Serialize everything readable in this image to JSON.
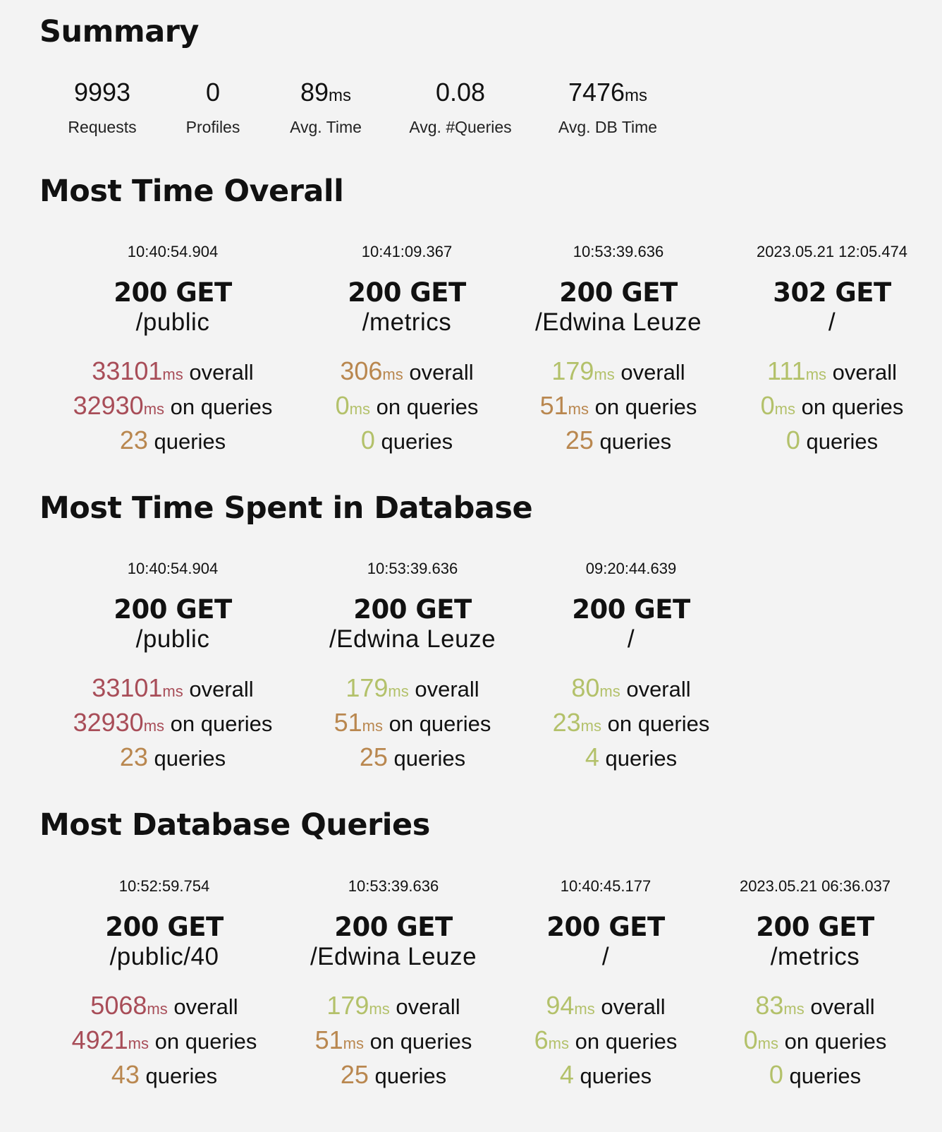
{
  "summary": {
    "title": "Summary",
    "stats": [
      {
        "value": "9993",
        "unit": "",
        "label": "Requests"
      },
      {
        "value": "0",
        "unit": "",
        "label": "Profiles"
      },
      {
        "value": "89",
        "unit": "ms",
        "label": "Avg. Time"
      },
      {
        "value": "0.08",
        "unit": "",
        "label": "Avg. #Queries"
      },
      {
        "value": "7476",
        "unit": "ms",
        "label": "Avg. DB Time"
      }
    ]
  },
  "labels": {
    "ms": "ms",
    "overall": "overall",
    "on_queries": "on queries",
    "queries": "queries"
  },
  "colors": {
    "red": "#a84d58",
    "orange": "#b9874f",
    "green": "#b3c16a"
  },
  "sections": [
    {
      "title": "Most Time Overall",
      "cards": [
        {
          "time": "10:40:54.904",
          "status": "200 GET",
          "path": "/public",
          "overall": "33101",
          "overall_color": "red",
          "on_queries": "32930",
          "on_queries_color": "red",
          "queries": "23",
          "queries_color": "orange"
        },
        {
          "time": "10:41:09.367",
          "status": "200 GET",
          "path": "/metrics",
          "overall": "306",
          "overall_color": "orange",
          "on_queries": "0",
          "on_queries_color": "green",
          "queries": "0",
          "queries_color": "green"
        },
        {
          "time": "10:53:39.636",
          "status": "200 GET",
          "path": "/Edwina Leuze",
          "overall": "179",
          "overall_color": "green",
          "on_queries": "51",
          "on_queries_color": "orange",
          "queries": "25",
          "queries_color": "orange"
        },
        {
          "time": "2023.05.21 12:05.474",
          "status": "302 GET",
          "path": "/",
          "overall": "111",
          "overall_color": "green",
          "on_queries": "0",
          "on_queries_color": "green",
          "queries": "0",
          "queries_color": "green"
        }
      ]
    },
    {
      "title": "Most Time Spent in Database",
      "cards": [
        {
          "time": "10:40:54.904",
          "status": "200 GET",
          "path": "/public",
          "overall": "33101",
          "overall_color": "red",
          "on_queries": "32930",
          "on_queries_color": "red",
          "queries": "23",
          "queries_color": "orange"
        },
        {
          "time": "10:53:39.636",
          "status": "200 GET",
          "path": "/Edwina Leuze",
          "overall": "179",
          "overall_color": "green",
          "on_queries": "51",
          "on_queries_color": "orange",
          "queries": "25",
          "queries_color": "orange"
        },
        {
          "time": "09:20:44.639",
          "status": "200 GET",
          "path": "/",
          "overall": "80",
          "overall_color": "green",
          "on_queries": "23",
          "on_queries_color": "green",
          "queries": "4",
          "queries_color": "green"
        }
      ]
    },
    {
      "title": "Most Database Queries",
      "cards": [
        {
          "time": "10:52:59.754",
          "status": "200 GET",
          "path": "/public/40",
          "overall": "5068",
          "overall_color": "red",
          "on_queries": "4921",
          "on_queries_color": "red",
          "queries": "43",
          "queries_color": "orange"
        },
        {
          "time": "10:53:39.636",
          "status": "200 GET",
          "path": "/Edwina Leuze",
          "overall": "179",
          "overall_color": "green",
          "on_queries": "51",
          "on_queries_color": "orange",
          "queries": "25",
          "queries_color": "orange"
        },
        {
          "time": "10:40:45.177",
          "status": "200 GET",
          "path": "/",
          "overall": "94",
          "overall_color": "green",
          "on_queries": "6",
          "on_queries_color": "green",
          "queries": "4",
          "queries_color": "green"
        },
        {
          "time": "2023.05.21 06:36.037",
          "status": "200 GET",
          "path": "/metrics",
          "overall": "83",
          "overall_color": "green",
          "on_queries": "0",
          "on_queries_color": "green",
          "queries": "0",
          "queries_color": "green"
        }
      ]
    }
  ]
}
